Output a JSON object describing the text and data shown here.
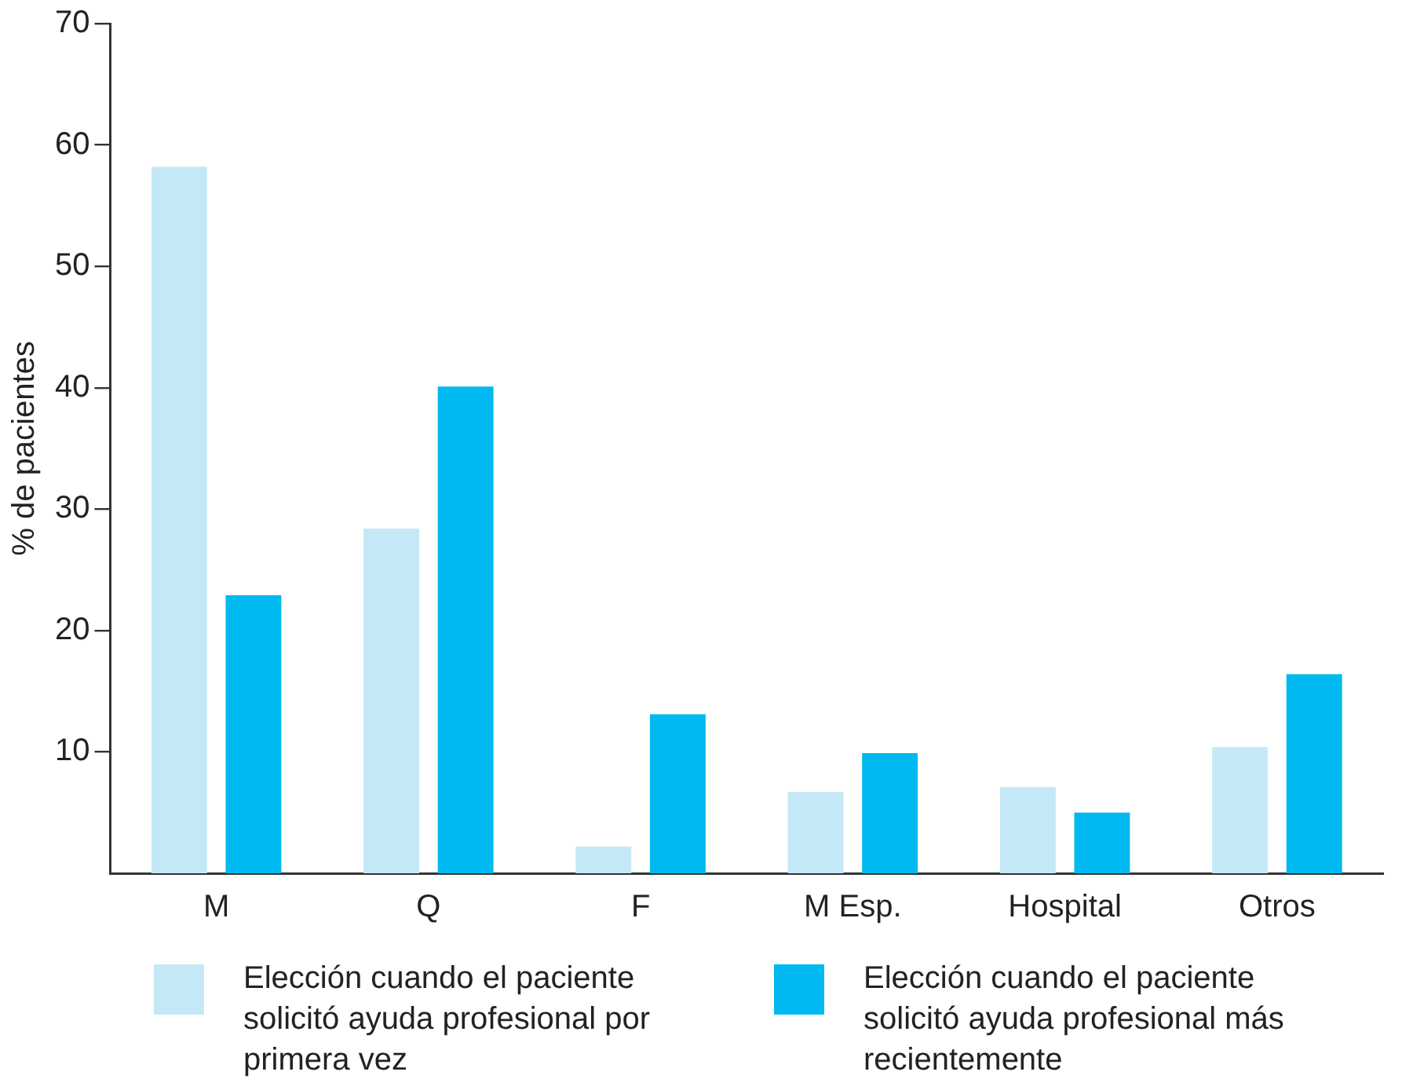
{
  "chart_data": {
    "type": "bar",
    "ylabel": "% de pacientes",
    "categories": [
      "M",
      "Q",
      "F",
      "M Esp.",
      "Hospital",
      "Otros"
    ],
    "series": [
      {
        "name": "Elección cuando el paciente solicitó ayuda profesional por primera vez",
        "color": "#c5e8f7",
        "values": [
          58.2,
          28.4,
          2.2,
          6.7,
          7.1,
          10.4
        ]
      },
      {
        "name": "Elección cuando el paciente solicitó ayuda profesional más recientemente",
        "color": "#00b9f0",
        "values": [
          22.9,
          40.1,
          13.1,
          9.9,
          5.0,
          16.4
        ]
      }
    ],
    "ylim": [
      0,
      70
    ],
    "yticks": [
      10,
      20,
      30,
      40,
      50,
      60,
      70
    ],
    "grid": false,
    "legend": "bottom"
  }
}
